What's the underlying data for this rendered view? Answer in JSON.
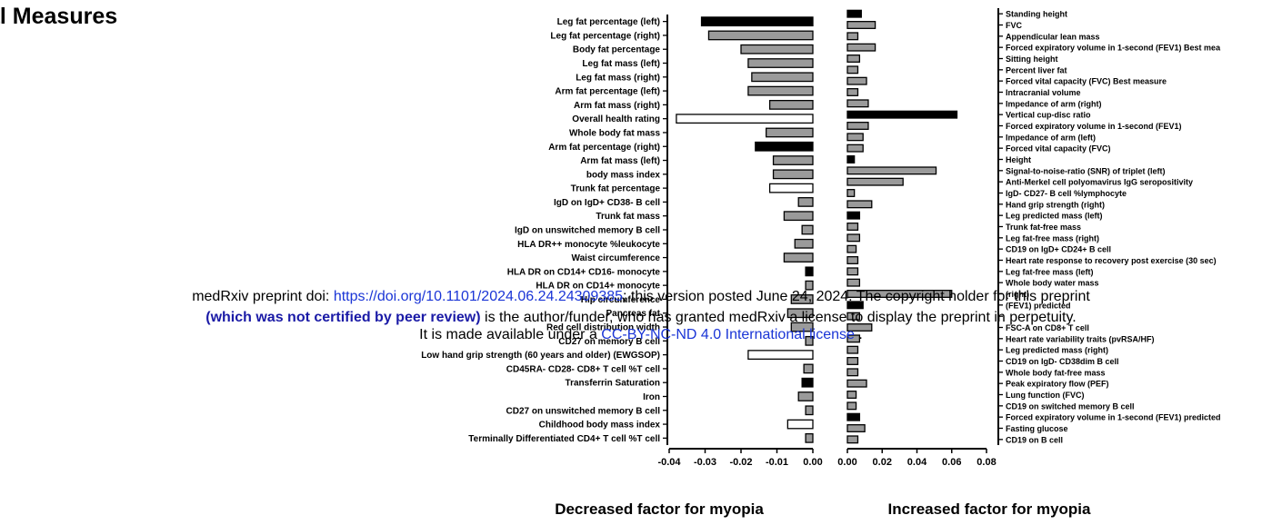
{
  "page": {
    "title": "al Measures"
  },
  "notice": {
    "line1_prefix": "medRxiv preprint doi: ",
    "doi": "https://doi.org/10.1101/2024.06.24.24309385",
    "line1_suffix": "; this version posted June 24, 2024. The copyright holder for this preprint",
    "bold_part": "(which was not certified by peer review)",
    "line2_suffix": " is the author/funder, who has granted medRxiv a license to display the preprint in perpetuity.",
    "line3_prefix": "It is made available under a ",
    "license": "CC-BY-NC-ND 4.0 International license",
    "line3_suffix": " ."
  },
  "chart_data": [
    {
      "type": "bar",
      "orientation": "horizontal",
      "xlabel": "Decreased factor for myopia",
      "xlim": [
        -0.04,
        0.0
      ],
      "xticks": [
        "-0.04",
        "-0.03",
        "-0.02",
        "-0.01",
        "0.00"
      ],
      "categories": [
        "Leg fat percentage (left)",
        "Leg fat percentage (right)",
        "Body fat percentage",
        "Leg fat mass (left)",
        "Leg fat mass (right)",
        "Arm fat percentage (left)",
        "Arm fat mass (right)",
        "Overall health rating",
        "Whole body fat mass",
        "Arm fat percentage (right)",
        "Arm fat mass (left)",
        "body mass index",
        "Trunk fat percentage",
        "IgD on IgD+ CD38- B cell",
        "Trunk fat mass",
        "IgD on unswitched memory B cell",
        "HLA DR++ monocyte %leukocyte",
        "Waist circumference",
        "HLA DR on CD14+ CD16- monocyte",
        "HLA DR on CD14+ monocyte",
        "Hip circumference",
        "Pancreas fat",
        "Red cell distribution width",
        "CD27 on memory B cell",
        "Low hand grip strength (60 years and older) (EWGSOP)",
        "CD45RA- CD28- CD8+ T cell %T cell",
        "Transferrin Saturation",
        "Iron",
        "CD27 on unswitched memory B cell",
        "Childhood body mass index",
        "Terminally Differentiated CD4+ T cell %T cell"
      ],
      "values": [
        -0.031,
        -0.029,
        -0.02,
        -0.018,
        -0.017,
        -0.018,
        -0.012,
        -0.038,
        -0.013,
        -0.016,
        -0.011,
        -0.011,
        -0.012,
        -0.004,
        -0.008,
        -0.003,
        -0.005,
        -0.008,
        -0.002,
        -0.002,
        -0.006,
        -0.007,
        -0.006,
        -0.002,
        -0.018,
        -0.0025,
        -0.003,
        -0.004,
        -0.002,
        -0.007,
        -0.002
      ],
      "fills": [
        "#000000",
        "#9a9a9a",
        "#9a9a9a",
        "#9a9a9a",
        "#9a9a9a",
        "#9a9a9a",
        "#9a9a9a",
        "#ffffff",
        "#9a9a9a",
        "#000000",
        "#9a9a9a",
        "#9a9a9a",
        "#ffffff",
        "#9a9a9a",
        "#9a9a9a",
        "#9a9a9a",
        "#9a9a9a",
        "#9a9a9a",
        "#000000",
        "#9a9a9a",
        "#9a9a9a",
        "#9a9a9a",
        "#9a9a9a",
        "#9a9a9a",
        "#ffffff",
        "#9a9a9a",
        "#000000",
        "#9a9a9a",
        "#9a9a9a",
        "#ffffff",
        "#9a9a9a"
      ]
    },
    {
      "type": "bar",
      "orientation": "horizontal",
      "xlabel": "Increased factor for myopia",
      "xlim": [
        0.0,
        0.08
      ],
      "xticks": [
        "0.00",
        "0.02",
        "0.04",
        "0.06",
        "0.08"
      ],
      "categories": [
        "Standing height",
        "FVC",
        "Appendicular lean mass",
        "Forced expiratory volume in 1-second (FEV1) Best mea",
        "Sitting height",
        "Percent liver fat",
        "Forced vital capacity (FVC) Best measure",
        "Intracranial volume",
        "Impedance of arm (right)",
        "Vertical cup-disc ratio",
        "Forced expiratory volume in 1-second (FEV1)",
        "Impedance of arm (left)",
        "Forced vital capacity (FVC)",
        "Height",
        "Signal-to-noise-ratio (SNR) of triplet (left)",
        "Anti-Merkel cell polyomavirus IgG seropositivity",
        "IgD- CD27- B cell %lymphocyte",
        "Hand grip strength (right)",
        "Leg predicted mass (left)",
        "Trunk fat-free mass",
        "Leg fat-free mass (right)",
        "CD19 on IgD+ CD24+ B cell",
        "Heart rate response to recovery post exercise (30 sec)",
        "Leg fat-free mass (left)",
        "Whole body water mass",
        "(right)",
        "(FEV1) predicted",
        "",
        "FSC-A on CD8+ T cell",
        "Heart rate variability traits (pvRSA/HF)",
        "Leg predicted mass (right)",
        "CD19 on IgD- CD38dim B cell",
        "Whole body fat-free mass",
        "Peak expiratory flow (PEF)",
        "Lung function (FVC)",
        "CD19 on switched memory B cell",
        "Forced expiratory volume in 1-second (FEV1) predicted",
        "Fasting glucose",
        "CD19 on B cell"
      ],
      "values": [
        0.008,
        0.016,
        0.006,
        0.016,
        0.007,
        0.006,
        0.011,
        0.006,
        0.012,
        0.063,
        0.012,
        0.009,
        0.009,
        0.004,
        0.051,
        0.032,
        0.004,
        0.014,
        0.007,
        0.006,
        0.007,
        0.005,
        0.006,
        0.006,
        0.007,
        0.06,
        0.009,
        0.007,
        0.014,
        0.007,
        0.006,
        0.006,
        0.006,
        0.011,
        0.005,
        0.005,
        0.007,
        0.01,
        0.006
      ],
      "fills": [
        "#000000",
        "#9a9a9a",
        "#9a9a9a",
        "#9a9a9a",
        "#9a9a9a",
        "#9a9a9a",
        "#9a9a9a",
        "#9a9a9a",
        "#9a9a9a",
        "#000000",
        "#9a9a9a",
        "#9a9a9a",
        "#9a9a9a",
        "#000000",
        "#9a9a9a",
        "#9a9a9a",
        "#9a9a9a",
        "#9a9a9a",
        "#000000",
        "#9a9a9a",
        "#9a9a9a",
        "#9a9a9a",
        "#9a9a9a",
        "#9a9a9a",
        "#9a9a9a",
        "#9a9a9a",
        "#000000",
        "#9a9a9a",
        "#9a9a9a",
        "#9a9a9a",
        "#9a9a9a",
        "#9a9a9a",
        "#9a9a9a",
        "#9a9a9a",
        "#9a9a9a",
        "#9a9a9a",
        "#000000",
        "#9a9a9a",
        "#9a9a9a"
      ]
    }
  ]
}
